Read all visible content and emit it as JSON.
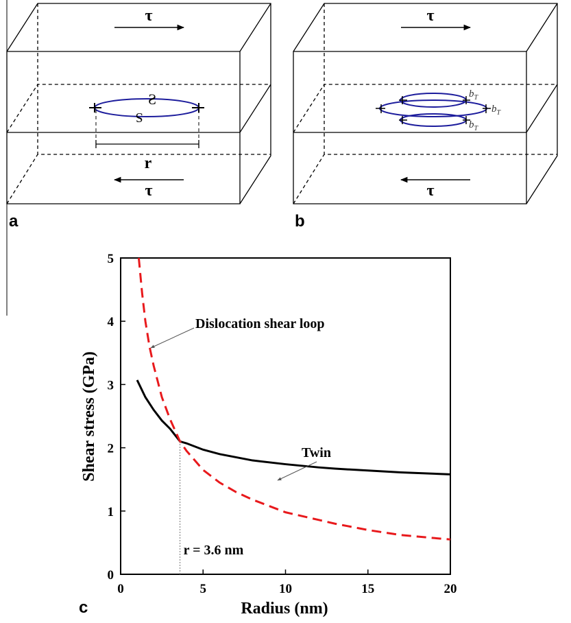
{
  "panels": {
    "a": {
      "label": "a",
      "tau_top": "τ",
      "tau_bottom": "τ",
      "loop_top": "S",
      "loop_bottom": "S",
      "radius": "r"
    },
    "b": {
      "label": "b",
      "tau_top": "τ",
      "tau_bottom": "τ",
      "burgers": [
        {
          "main": "b",
          "sub": "T"
        },
        {
          "main": "b",
          "sub": "T"
        },
        {
          "main": "b",
          "sub": "T"
        }
      ]
    }
  },
  "chart_data": {
    "type": "line",
    "panel_label": "c",
    "xlabel": "Radius (nm)",
    "ylabel": "Shear stress (GPa)",
    "xlim": [
      0,
      20
    ],
    "ylim": [
      0,
      5
    ],
    "xticks": [
      0,
      5,
      10,
      15,
      20
    ],
    "yticks": [
      0,
      1,
      2,
      3,
      4,
      5
    ],
    "series": [
      {
        "name": "Twin",
        "color": "#000000",
        "style": "solid",
        "x": [
          1,
          1.5,
          2,
          2.5,
          3,
          3.6,
          4,
          5,
          6,
          7,
          8,
          10,
          12,
          13,
          15,
          17,
          20
        ],
        "values": [
          3.07,
          2.8,
          2.6,
          2.43,
          2.3,
          2.1,
          2.07,
          1.97,
          1.9,
          1.85,
          1.8,
          1.74,
          1.69,
          1.67,
          1.64,
          1.61,
          1.58
        ]
      },
      {
        "name": "Dislocation shear loop",
        "color": "#e8191c",
        "style": "dashed",
        "x": [
          1.1,
          1.3,
          1.5,
          1.75,
          2,
          2.5,
          3,
          3.6,
          4,
          5,
          6,
          7,
          8,
          10,
          12,
          13,
          15,
          17,
          20
        ],
        "values": [
          5,
          4.45,
          4.0,
          3.6,
          3.3,
          2.8,
          2.45,
          2.1,
          1.95,
          1.65,
          1.45,
          1.3,
          1.18,
          0.98,
          0.86,
          0.8,
          0.7,
          0.62,
          0.55
        ]
      }
    ],
    "annotations": [
      "Dislocation shear loop",
      "Twin",
      "r = 3.6 nm"
    ],
    "critical_radius": 3.6
  }
}
